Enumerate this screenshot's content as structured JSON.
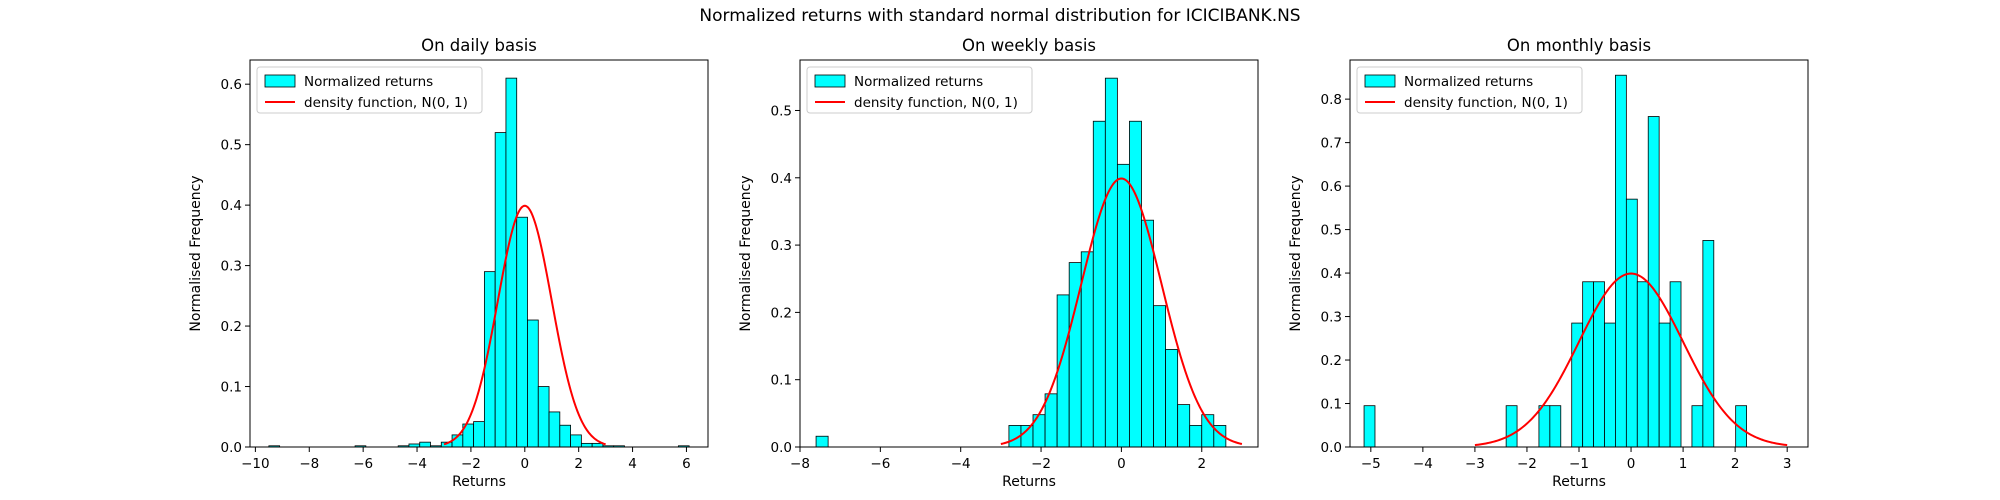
{
  "figure": {
    "suptitle": "Normalized returns with standard normal distribution for ICICIBANK.NS"
  },
  "chart_data": [
    {
      "type": "bar",
      "title": "On daily basis",
      "xlabel": "Returns",
      "ylabel": "Normalised Frequency",
      "xlim": [
        -10.2,
        6.8
      ],
      "ylim": [
        0,
        0.64
      ],
      "xticks": [
        -10,
        -8,
        -6,
        -4,
        -2,
        0,
        2,
        4,
        6
      ],
      "yticks": [
        0.0,
        0.1,
        0.2,
        0.3,
        0.4,
        0.5,
        0.6
      ],
      "bin_edges": [
        -9.5,
        -9.1,
        -8.7,
        -8.3,
        -7.9,
        -7.5,
        -7.1,
        -6.7,
        -6.3,
        -5.9,
        -5.5,
        -5.1,
        -4.7,
        -4.3,
        -3.9,
        -3.5,
        -3.1,
        -2.7,
        -2.3,
        -1.9,
        -1.5,
        -1.1,
        -0.7,
        -0.3,
        0.1,
        0.5,
        0.9,
        1.3,
        1.7,
        2.1,
        2.5,
        2.9,
        3.3,
        3.7,
        4.1,
        4.5,
        4.9,
        5.3,
        5.7,
        6.1
      ],
      "values": [
        0.002,
        0,
        0,
        0,
        0,
        0,
        0,
        0,
        0.002,
        0,
        0,
        0,
        0.002,
        0.005,
        0.008,
        0.002,
        0.008,
        0.02,
        0.038,
        0.042,
        0.29,
        0.52,
        0.61,
        0.38,
        0.21,
        0.1,
        0.058,
        0.036,
        0.02,
        0.006,
        0.006,
        0.002,
        0.002,
        0,
        0,
        0,
        0,
        0,
        0.002
      ],
      "series": [
        {
          "name": "Normalized returns",
          "type": "histogram",
          "color": "#00ffff",
          "edge_color": "#000000"
        },
        {
          "name": "density function, N(0, 1)",
          "type": "line",
          "color": "#ff0000",
          "function": "normal_pdf",
          "x_range": [
            -3,
            3
          ]
        }
      ],
      "legend": "upper-left"
    },
    {
      "type": "bar",
      "title": "On weekly basis",
      "xlabel": "Returns",
      "ylabel": "Normalised Frequency",
      "xlim": [
        -8.0,
        3.4
      ],
      "ylim": [
        0,
        0.575
      ],
      "xticks": [
        -8,
        -6,
        -4,
        -2,
        0,
        2
      ],
      "yticks": [
        0.0,
        0.1,
        0.2,
        0.3,
        0.4,
        0.5
      ],
      "bin_edges": [
        -7.6,
        -7.3,
        -7.0,
        -6.7,
        -6.4,
        -6.1,
        -5.8,
        -5.5,
        -5.2,
        -4.9,
        -4.6,
        -4.3,
        -4.0,
        -3.7,
        -3.4,
        -3.1,
        -2.8,
        -2.5,
        -2.2,
        -1.9,
        -1.6,
        -1.3,
        -1.0,
        -0.7,
        -0.4,
        -0.1,
        0.2,
        0.5,
        0.8,
        1.1,
        1.4,
        1.7,
        2.0,
        2.3,
        2.6
      ],
      "values": [
        0.016,
        0,
        0,
        0,
        0,
        0,
        0,
        0,
        0,
        0,
        0,
        0,
        0,
        0,
        0,
        0,
        0.032,
        0.032,
        0.048,
        0.079,
        0.226,
        0.274,
        0.29,
        0.484,
        0.548,
        0.42,
        0.484,
        0.337,
        0.21,
        0.145,
        0.063,
        0.032,
        0.048,
        0.032
      ],
      "series": [
        {
          "name": "Normalized returns",
          "type": "histogram",
          "color": "#00ffff",
          "edge_color": "#000000"
        },
        {
          "name": "density function, N(0, 1)",
          "type": "line",
          "color": "#ff0000",
          "function": "normal_pdf",
          "x_range": [
            -3,
            3
          ]
        }
      ],
      "legend": "upper-left"
    },
    {
      "type": "bar",
      "title": "On monthly basis",
      "xlabel": "Returns",
      "ylabel": "Normalised Frequency",
      "xlim": [
        -5.4,
        3.4
      ],
      "ylim": [
        0,
        0.89
      ],
      "xticks": [
        -5,
        -4,
        -3,
        -2,
        -1,
        0,
        1,
        2,
        3
      ],
      "yticks": [
        0.0,
        0.1,
        0.2,
        0.3,
        0.4,
        0.5,
        0.6,
        0.7,
        0.8
      ],
      "bin_edges": [
        -5.13,
        -4.92,
        -4.71,
        -4.5,
        -4.29,
        -4.08,
        -3.87,
        -3.66,
        -3.45,
        -3.24,
        -3.03,
        -2.82,
        -2.61,
        -2.4,
        -2.19,
        -1.98,
        -1.77,
        -1.56,
        -1.35,
        -1.14,
        -0.93,
        -0.72,
        -0.51,
        -0.3,
        -0.09,
        0.12,
        0.33,
        0.54,
        0.75,
        0.96,
        1.17,
        1.38,
        1.59,
        1.8,
        2.01,
        2.22
      ],
      "values": [
        0.095,
        0,
        0,
        0,
        0,
        0,
        0,
        0,
        0,
        0,
        0,
        0,
        0,
        0.095,
        0,
        0,
        0.095,
        0.095,
        0,
        0.285,
        0.38,
        0.38,
        0.285,
        0.855,
        0.57,
        0.38,
        0.76,
        0.285,
        0.38,
        0,
        0.095,
        0.475,
        0,
        0,
        0.095
      ],
      "series": [
        {
          "name": "Normalized returns",
          "type": "histogram",
          "color": "#00ffff",
          "edge_color": "#000000"
        },
        {
          "name": "density function, N(0, 1)",
          "type": "line",
          "color": "#ff0000",
          "function": "normal_pdf",
          "x_range": [
            -3,
            3
          ]
        }
      ],
      "legend": "upper-left"
    }
  ]
}
